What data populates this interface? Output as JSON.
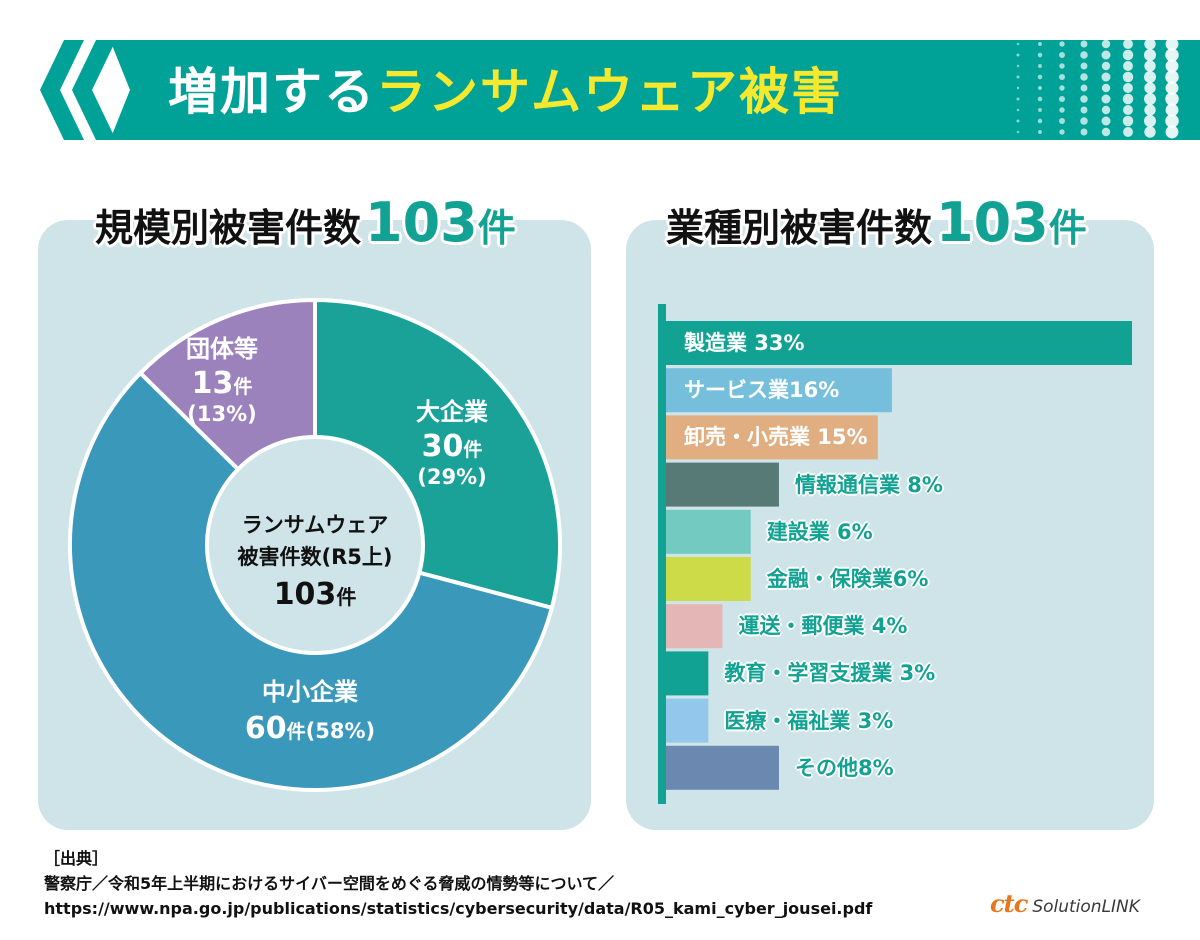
{
  "banner": {
    "title_white": "増加する",
    "title_yellow": "ランサムウェア被害"
  },
  "left_panel": {
    "title_text": "規模別被害件数",
    "title_number": "103",
    "title_unit": "件"
  },
  "right_panel": {
    "title_text": "業種別被害件数",
    "title_number": "103",
    "title_unit": "件"
  },
  "colors": {
    "teal": "#12a293",
    "panel_bg": "#cfe4e8",
    "banner_teal": "#00a298",
    "yellow": "#f6e92d",
    "large_company": "#1aa298",
    "sme": "#3a98bb",
    "organizations": "#9c82bd"
  },
  "chart_data": [
    {
      "type": "pie",
      "title": "規模別被害件数103件",
      "center_label": [
        "ランサムウェア",
        "被害件数(R5上)",
        "103件"
      ],
      "slices": [
        {
          "name": "大企業",
          "value": 30,
          "count_label": "30",
          "unit": "件",
          "percent_label": "(29%)",
          "color": "#1aa298"
        },
        {
          "name": "中小企業",
          "value": 60,
          "count_label": "60",
          "unit": "件",
          "percent_label": "(58%)",
          "color": "#3a98bb"
        },
        {
          "name": "団体等",
          "value": 13,
          "count_label": "13",
          "unit": "件",
          "percent_label": "(13%)",
          "color": "#9c82bd"
        }
      ]
    },
    {
      "type": "bar",
      "title": "業種別被害件数103件",
      "orientation": "horizontal",
      "categories": [
        "製造業",
        "サービス業",
        "卸売・小売業",
        "情報通信業",
        "建設業",
        "金融・保険業",
        "運送・郵便業",
        "教育・学習支援業",
        "医療・福祉業",
        "その他"
      ],
      "labels": [
        "製造業 33%",
        "サービス業16%",
        "卸売・小売業 15%",
        "情報通信業 8%",
        "建設業 6%",
        "金融・保険業6%",
        "運送・郵便業 4%",
        "教育・学習支援業 3%",
        "医療・福祉業 3%",
        "その他8%"
      ],
      "values": [
        33,
        16,
        15,
        8,
        6,
        6,
        4,
        3,
        3,
        8
      ],
      "colors": [
        "#12a293",
        "#76bfdc",
        "#e0ae80",
        "#587a77",
        "#72cac1",
        "#cedb48",
        "#e4b6b6",
        "#12a293",
        "#94c7ec",
        "#6b89b0"
      ],
      "label_inside": [
        true,
        true,
        true,
        false,
        false,
        false,
        false,
        false,
        false,
        false
      ],
      "xlim": [
        0,
        33
      ]
    }
  ],
  "source": {
    "heading": "［出典］",
    "line1": "警察庁／令和5年上半期におけるサイバー空間をめぐる脅威の情勢等について／",
    "line2": "https://www.npa.go.jp/publications/statistics/cybersecurity/data/R05_kami_cyber_jousei.pdf"
  },
  "logo": {
    "brand": "ctc",
    "product": "SolutionLINK"
  }
}
